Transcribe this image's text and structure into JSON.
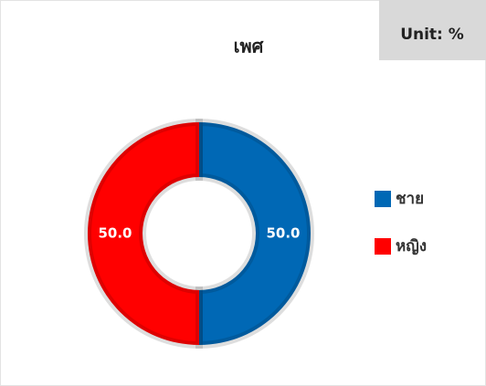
{
  "chart_data": {
    "type": "donut",
    "title": "เพศ",
    "unit_label": "Unit: %",
    "categories": [
      "ชาย",
      "หญิง"
    ],
    "values": [
      50,
      50
    ],
    "value_labels": [
      "50.0",
      "50.0"
    ],
    "colors": [
      "#0068b5",
      "#ff0000"
    ],
    "legend": "right"
  }
}
